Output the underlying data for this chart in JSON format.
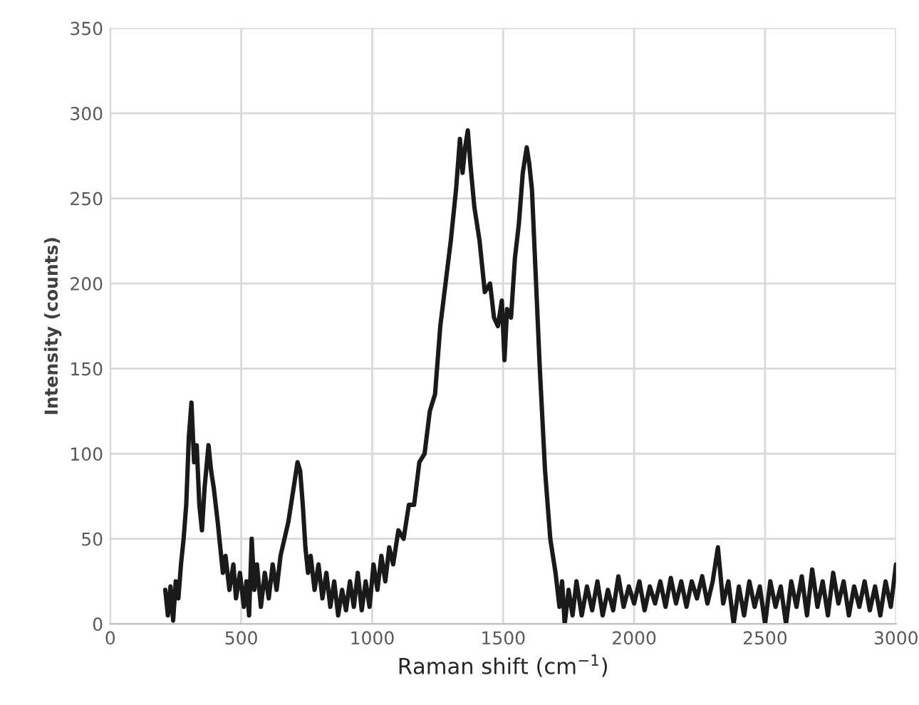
{
  "chart_data": {
    "type": "line",
    "xlabel": "Raman shift (cm$^{−1}$)",
    "ylabel": "Intensity (counts)",
    "xlim": [
      0,
      3000
    ],
    "xticks": [
      0,
      500,
      1000,
      1500,
      2000,
      2500,
      3000
    ],
    "ylim": [
      0,
      350
    ],
    "yticks": [
      0,
      50,
      100,
      150,
      200,
      250,
      300,
      350
    ],
    "grid": true,
    "marker": "none",
    "line_style": "solid",
    "series": [
      {
        "color": "#1a1a1a",
        "x": [
          210,
          220,
          230,
          240,
          250,
          260,
          270,
          280,
          290,
          300,
          310,
          320,
          330,
          340,
          350,
          360,
          375,
          385,
          395,
          410,
          420,
          430,
          440,
          455,
          470,
          480,
          495,
          510,
          520,
          530,
          540,
          550,
          560,
          575,
          590,
          605,
          620,
          635,
          650,
          665,
          680,
          700,
          715,
          725,
          735,
          745,
          755,
          765,
          780,
          795,
          810,
          825,
          840,
          855,
          870,
          885,
          900,
          915,
          930,
          945,
          960,
          975,
          990,
          1005,
          1020,
          1035,
          1050,
          1065,
          1080,
          1100,
          1120,
          1140,
          1160,
          1180,
          1200,
          1220,
          1240,
          1260,
          1280,
          1300,
          1320,
          1335,
          1345,
          1355,
          1365,
          1375,
          1390,
          1410,
          1430,
          1450,
          1465,
          1480,
          1495,
          1505,
          1515,
          1530,
          1545,
          1560,
          1575,
          1590,
          1600,
          1610,
          1620,
          1640,
          1660,
          1680,
          1700,
          1715,
          1725,
          1735,
          1750,
          1765,
          1780,
          1800,
          1820,
          1840,
          1860,
          1880,
          1900,
          1920,
          1940,
          1960,
          1980,
          2000,
          2020,
          2040,
          2060,
          2080,
          2100,
          2120,
          2140,
          2160,
          2180,
          2200,
          2220,
          2240,
          2260,
          2280,
          2300,
          2320,
          2340,
          2360,
          2380,
          2400,
          2420,
          2440,
          2460,
          2480,
          2500,
          2520,
          2540,
          2560,
          2580,
          2600,
          2620,
          2640,
          2660,
          2680,
          2700,
          2720,
          2740,
          2760,
          2780,
          2800,
          2820,
          2840,
          2860,
          2880,
          2900,
          2920,
          2940,
          2960,
          2980,
          3000
        ],
        "values": [
          20,
          5,
          22,
          2,
          25,
          15,
          35,
          50,
          70,
          110,
          130,
          95,
          105,
          70,
          55,
          80,
          105,
          90,
          80,
          60,
          45,
          30,
          40,
          20,
          35,
          15,
          30,
          10,
          25,
          5,
          50,
          20,
          35,
          10,
          30,
          15,
          35,
          20,
          40,
          50,
          60,
          80,
          95,
          90,
          70,
          45,
          30,
          40,
          20,
          35,
          15,
          30,
          10,
          25,
          5,
          20,
          8,
          25,
          10,
          30,
          8,
          25,
          10,
          35,
          20,
          40,
          25,
          45,
          35,
          55,
          50,
          70,
          70,
          95,
          100,
          125,
          135,
          175,
          200,
          225,
          255,
          285,
          265,
          280,
          290,
          270,
          245,
          225,
          195,
          200,
          180,
          175,
          190,
          155,
          185,
          180,
          215,
          235,
          265,
          280,
          270,
          255,
          220,
          150,
          90,
          50,
          30,
          10,
          25,
          0,
          20,
          5,
          25,
          5,
          22,
          8,
          25,
          5,
          20,
          8,
          28,
          10,
          22,
          12,
          25,
          8,
          22,
          12,
          25,
          10,
          27,
          12,
          25,
          10,
          25,
          15,
          28,
          12,
          25,
          45,
          12,
          25,
          0,
          22,
          5,
          25,
          10,
          22,
          0,
          25,
          10,
          22,
          0,
          25,
          10,
          28,
          5,
          32,
          10,
          25,
          5,
          30,
          12,
          25,
          5,
          22,
          10,
          25,
          8,
          22,
          5,
          25,
          10,
          35
        ]
      }
    ]
  }
}
